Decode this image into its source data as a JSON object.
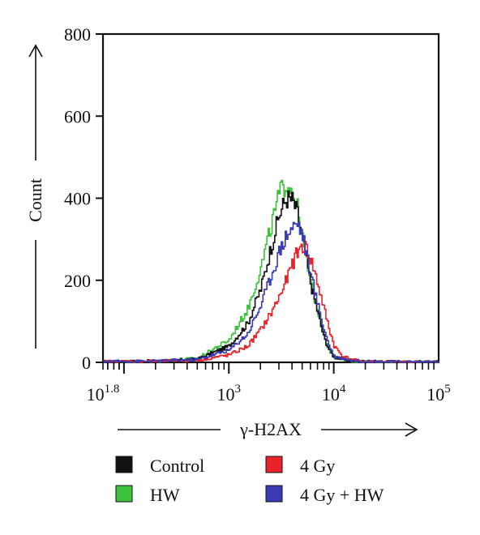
{
  "chart_data": {
    "type": "line",
    "chart_style": "histogram (step lines)",
    "title": "",
    "xlabel": "γ-H2AX",
    "ylabel": "Count",
    "x_scale": "log",
    "xlim": [
      63.1,
      100000
    ],
    "ylim": [
      0,
      800
    ],
    "x_ticks": [
      {
        "base": "10",
        "exp": "1.8"
      },
      {
        "base": "10",
        "exp": "3"
      },
      {
        "base": "10",
        "exp": "4"
      },
      {
        "base": "10",
        "exp": "5"
      }
    ],
    "y_ticks": [
      "0",
      "200",
      "400",
      "600",
      "800"
    ],
    "grid": false,
    "legend_position": "bottom",
    "series": [
      {
        "name": "Control",
        "color": "#111111",
        "x": [
          63,
          200,
          500,
          1000,
          1500,
          2000,
          2500,
          3000,
          3500,
          4000,
          4500,
          5000,
          5500,
          6000,
          7000,
          8000,
          9000,
          10000,
          15000,
          20000,
          50000,
          100000
        ],
        "y": [
          2,
          3,
          8,
          40,
          95,
          180,
          280,
          360,
          400,
          395,
          360,
          300,
          240,
          190,
          120,
          60,
          30,
          12,
          3,
          2,
          1,
          1
        ]
      },
      {
        "name": "HW",
        "color": "#3ec23e",
        "x": [
          63,
          200,
          500,
          1000,
          1500,
          2000,
          2500,
          3000,
          3500,
          4000,
          4500,
          5000,
          5500,
          6000,
          7000,
          8000,
          9000,
          10000,
          15000,
          20000,
          50000,
          100000
        ],
        "y": [
          2,
          3,
          10,
          55,
          130,
          230,
          330,
          410,
          440,
          420,
          370,
          300,
          240,
          190,
          125,
          65,
          30,
          12,
          3,
          2,
          1,
          1
        ]
      },
      {
        "name": "4 Gy",
        "color": "#e8232a",
        "x": [
          63,
          200,
          500,
          1000,
          1500,
          2000,
          2500,
          3000,
          3500,
          4000,
          4500,
          5000,
          5500,
          6000,
          7000,
          8000,
          9000,
          10000,
          12000,
          15000,
          20000,
          50000,
          100000
        ],
        "y": [
          2,
          3,
          5,
          18,
          40,
          80,
          120,
          160,
          200,
          240,
          270,
          285,
          275,
          250,
          190,
          130,
          80,
          40,
          15,
          6,
          2,
          1,
          1
        ]
      },
      {
        "name": "4 Gy + HW",
        "color": "#3a3ab5",
        "x": [
          63,
          200,
          500,
          1000,
          1500,
          2000,
          2500,
          3000,
          3500,
          4000,
          4500,
          5000,
          5500,
          6000,
          7000,
          8000,
          9000,
          10000,
          15000,
          20000,
          50000,
          100000
        ],
        "y": [
          2,
          3,
          7,
          30,
          70,
          140,
          210,
          270,
          310,
          330,
          340,
          310,
          260,
          210,
          140,
          80,
          40,
          15,
          4,
          2,
          1,
          1
        ]
      }
    ]
  }
}
